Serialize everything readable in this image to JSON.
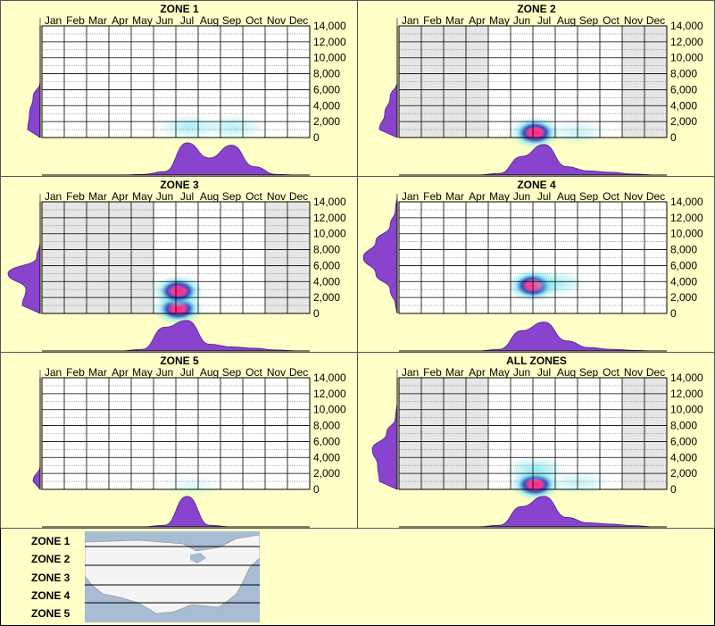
{
  "months": [
    "Jan",
    "Feb",
    "Mar",
    "Apr",
    "May",
    "Jun",
    "Jul",
    "Aug",
    "Sep",
    "Oct",
    "Nov",
    "Dec"
  ],
  "y_ticks": [
    "14,000",
    "12,000",
    "10,000",
    "8,000",
    "6,000",
    "4,000",
    "2,000",
    "0"
  ],
  "chart_data": [
    {
      "type": "heatmap",
      "title": "ZONE 1",
      "ylim": [
        0,
        14000
      ],
      "active_months": [
        0,
        1,
        2,
        3,
        4,
        5,
        6,
        7,
        8,
        9,
        10,
        11
      ],
      "hotspots": [
        {
          "month": 6.1,
          "elev": 1300,
          "intensity": 0.28
        },
        {
          "month": 8.1,
          "elev": 1300,
          "intensity": 0.25
        }
      ],
      "month_density": [
        0,
        0,
        0,
        0,
        0.02,
        0.1,
        0.95,
        0.5,
        0.88,
        0.25,
        0.02,
        0
      ],
      "elev_density": [
        0.35,
        0.3,
        0.2,
        0,
        0,
        0,
        0,
        0
      ]
    },
    {
      "type": "heatmap",
      "title": "ZONE 2",
      "ylim": [
        0,
        14000
      ],
      "active_months": [
        4,
        5,
        6,
        7,
        8,
        9
      ],
      "hotspots": [
        {
          "month": 5.6,
          "elev": 600,
          "intensity": 1.0
        },
        {
          "month": 7.5,
          "elev": 600,
          "intensity": 0.18
        }
      ],
      "month_density": [
        0,
        0,
        0,
        0,
        0.05,
        0.55,
        0.9,
        0.25,
        0.12,
        0.08,
        0.03,
        0
      ],
      "elev_density": [
        0.5,
        0.35,
        0.2,
        0,
        0,
        0,
        0,
        0
      ]
    },
    {
      "type": "heatmap",
      "title": "ZONE 3",
      "ylim": [
        0,
        14000
      ],
      "active_months": [
        5,
        6,
        7,
        8,
        9
      ],
      "hotspots": [
        {
          "month": 5.6,
          "elev": 600,
          "intensity": 1.0
        },
        {
          "month": 5.6,
          "elev": 2800,
          "intensity": 0.7
        }
      ],
      "month_density": [
        0,
        0,
        0,
        0,
        0.05,
        0.7,
        0.9,
        0.2,
        0.12,
        0.08,
        0.03,
        0
      ],
      "elev_density": [
        0.5,
        0.4,
        0.9,
        0.1,
        0,
        0,
        0,
        0
      ]
    },
    {
      "type": "heatmap",
      "title": "ZONE 4",
      "ylim": [
        0,
        14000
      ],
      "active_months": [
        0,
        1,
        2,
        3,
        4,
        5,
        6,
        7,
        8,
        9,
        10,
        11
      ],
      "hotspots": [
        {
          "month": 5.5,
          "elev": 3500,
          "intensity": 1.0
        },
        {
          "month": 6.5,
          "elev": 3800,
          "intensity": 0.3
        }
      ],
      "month_density": [
        0,
        0,
        0,
        0,
        0.05,
        0.6,
        0.85,
        0.3,
        0.1,
        0.05,
        0.02,
        0
      ],
      "elev_density": [
        0.05,
        0.2,
        0.6,
        0.95,
        0.6,
        0.2,
        0.05,
        0
      ]
    },
    {
      "type": "heatmap",
      "title": "ZONE 5",
      "ylim": [
        0,
        14000
      ],
      "active_months": [
        0,
        1,
        2,
        3,
        4,
        5,
        6,
        7,
        8,
        9,
        10,
        11
      ],
      "hotspots": [
        {
          "month": 6.2,
          "elev": 300,
          "intensity": 0.12
        }
      ],
      "month_density": [
        0,
        0,
        0,
        0,
        0,
        0.05,
        0.9,
        0.05,
        0,
        0,
        0,
        0
      ],
      "elev_density": [
        0.2,
        0,
        0,
        0,
        0,
        0,
        0,
        0
      ]
    },
    {
      "type": "heatmap",
      "title": "ALL ZONES",
      "ylim": [
        0,
        14000
      ],
      "active_months": [
        4,
        5,
        6,
        7,
        8,
        9
      ],
      "hotspots": [
        {
          "month": 5.6,
          "elev": 600,
          "intensity": 1.0
        },
        {
          "month": 5.6,
          "elev": 2500,
          "intensity": 0.35
        },
        {
          "month": 7.5,
          "elev": 800,
          "intensity": 0.2
        }
      ],
      "month_density": [
        0,
        0,
        0,
        0,
        0.05,
        0.6,
        0.9,
        0.28,
        0.12,
        0.08,
        0.04,
        0
      ],
      "elev_density": [
        0.5,
        0.55,
        0.7,
        0.3,
        0.05,
        0,
        0,
        0
      ]
    }
  ],
  "legend": {
    "zones": [
      "ZONE 1",
      "ZONE 2",
      "ZONE 3",
      "ZONE 4",
      "ZONE 5"
    ]
  },
  "colors": {
    "background": "#ffffc8",
    "density": "#8844cc",
    "inactive": "#e6e6e6",
    "hot": "#ff2288",
    "mid": "#1040c0",
    "cool": "#80e8f0"
  }
}
